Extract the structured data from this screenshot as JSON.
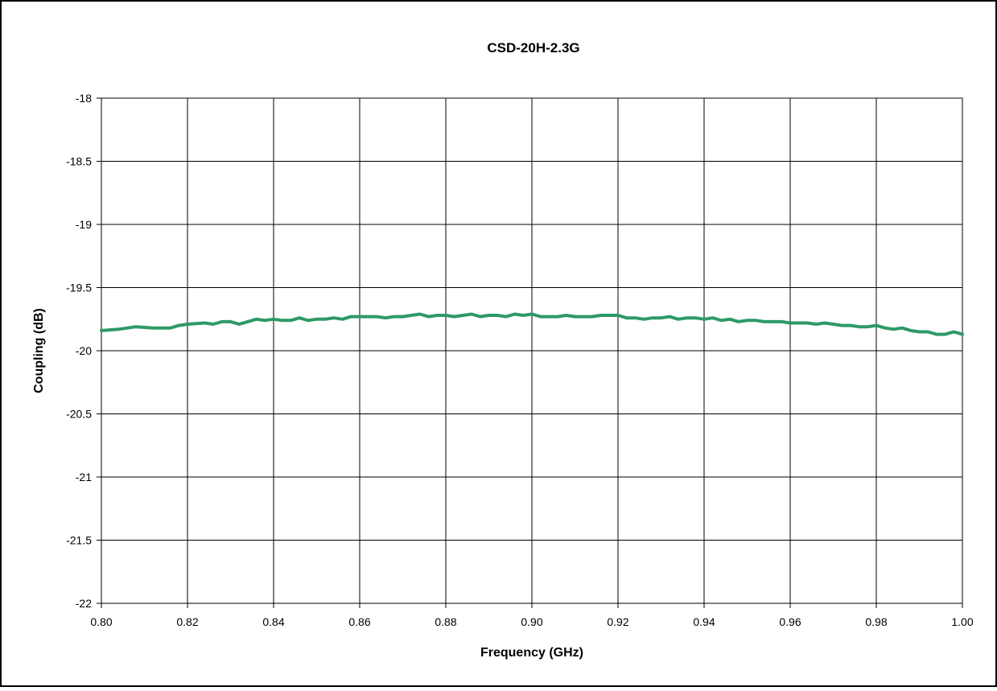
{
  "chart_data": {
    "type": "line",
    "title": "CSD-20H-2.3G",
    "xlabel": "Frequency (GHz)",
    "ylabel": "Coupling (dB)",
    "xlim": [
      0.8,
      1.0
    ],
    "ylim": [
      -22,
      -18
    ],
    "x_ticks": [
      "0.80",
      "0.82",
      "0.84",
      "0.86",
      "0.88",
      "0.90",
      "0.92",
      "0.94",
      "0.96",
      "0.98",
      "1.00"
    ],
    "y_ticks": [
      "-18",
      "-18.5",
      "-19",
      "-19.5",
      "-20",
      "-20.5",
      "-21",
      "-21.5",
      "-22"
    ],
    "grid": true,
    "legend": "none",
    "series_color": "#2e9a66",
    "series": [
      {
        "x": [
          0.8,
          0.804,
          0.808,
          0.812,
          0.816,
          0.818,
          0.82,
          0.824,
          0.826,
          0.828,
          0.83,
          0.832,
          0.834,
          0.836,
          0.838,
          0.84,
          0.842,
          0.844,
          0.846,
          0.848,
          0.85,
          0.852,
          0.854,
          0.856,
          0.858,
          0.86,
          0.862,
          0.864,
          0.866,
          0.868,
          0.87,
          0.872,
          0.874,
          0.876,
          0.878,
          0.88,
          0.882,
          0.884,
          0.886,
          0.888,
          0.89,
          0.892,
          0.894,
          0.896,
          0.898,
          0.9,
          0.902,
          0.904,
          0.906,
          0.908,
          0.91,
          0.912,
          0.914,
          0.916,
          0.918,
          0.92,
          0.922,
          0.924,
          0.926,
          0.928,
          0.93,
          0.932,
          0.934,
          0.936,
          0.938,
          0.94,
          0.942,
          0.944,
          0.946,
          0.948,
          0.95,
          0.952,
          0.954,
          0.956,
          0.958,
          0.96,
          0.962,
          0.964,
          0.966,
          0.968,
          0.97,
          0.972,
          0.974,
          0.976,
          0.978,
          0.98,
          0.982,
          0.984,
          0.986,
          0.988,
          0.99,
          0.992,
          0.994,
          0.996,
          0.998,
          1.0
        ],
        "y": [
          -19.84,
          -19.83,
          -19.81,
          -19.82,
          -19.82,
          -19.8,
          -19.79,
          -19.78,
          -19.79,
          -19.77,
          -19.77,
          -19.79,
          -19.77,
          -19.75,
          -19.76,
          -19.75,
          -19.76,
          -19.76,
          -19.74,
          -19.76,
          -19.75,
          -19.75,
          -19.74,
          -19.75,
          -19.73,
          -19.73,
          -19.73,
          -19.73,
          -19.74,
          -19.73,
          -19.73,
          -19.72,
          -19.71,
          -19.73,
          -19.72,
          -19.72,
          -19.73,
          -19.72,
          -19.71,
          -19.73,
          -19.72,
          -19.72,
          -19.73,
          -19.71,
          -19.72,
          -19.71,
          -19.73,
          -19.73,
          -19.73,
          -19.72,
          -19.73,
          -19.73,
          -19.73,
          -19.72,
          -19.72,
          -19.72,
          -19.74,
          -19.74,
          -19.75,
          -19.74,
          -19.74,
          -19.73,
          -19.75,
          -19.74,
          -19.74,
          -19.75,
          -19.74,
          -19.76,
          -19.75,
          -19.77,
          -19.76,
          -19.76,
          -19.77,
          -19.77,
          -19.77,
          -19.78,
          -19.78,
          -19.78,
          -19.79,
          -19.78,
          -19.79,
          -19.8,
          -19.8,
          -19.81,
          -19.81,
          -19.8,
          -19.82,
          -19.83,
          -19.82,
          -19.84,
          -19.85,
          -19.85,
          -19.87,
          -19.87,
          -19.85,
          -19.87
        ]
      }
    ]
  }
}
